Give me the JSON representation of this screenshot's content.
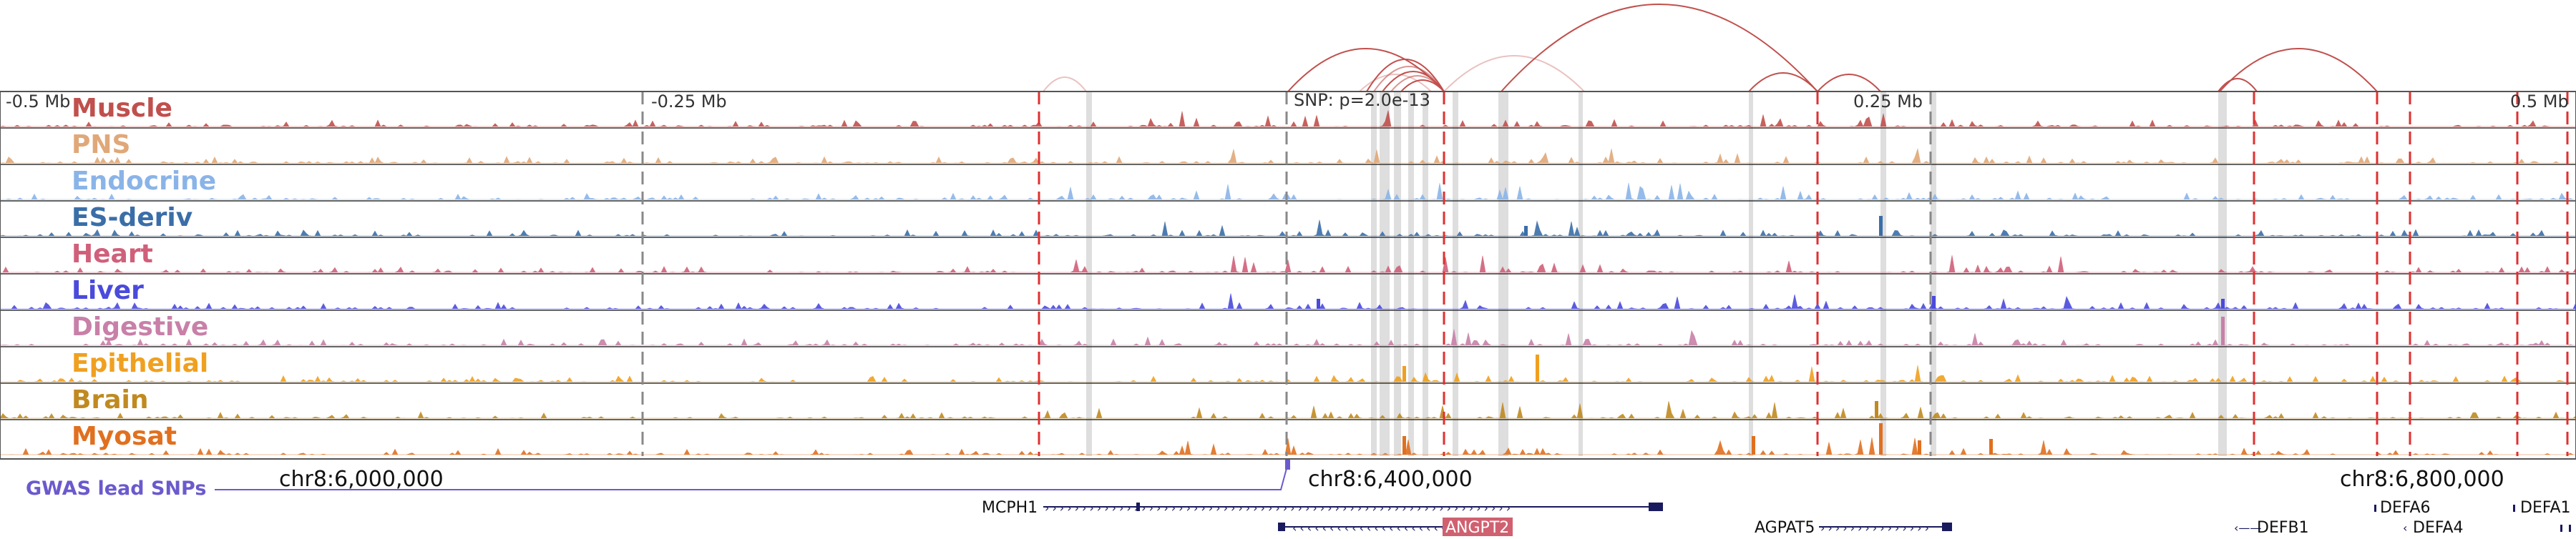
{
  "axis_ticks": [
    "-0.5 Mb",
    "-0.25 Mb",
    "0.25 Mb",
    "0.5 Mb"
  ],
  "snp_label": "SNP: p=2.0e-13",
  "gwas_label": "GWAS lead SNPs",
  "chrom_positions": [
    "chr8:6,000,000",
    "chr8:6,400,000",
    "chr8:6,800,000"
  ],
  "tracks": [
    {
      "name": "Muscle",
      "color": "#c0504d"
    },
    {
      "name": "PNS",
      "color": "#e0a878"
    },
    {
      "name": "Endocrine",
      "color": "#8ab4e8"
    },
    {
      "name": "ES-deriv",
      "color": "#3a6ea8"
    },
    {
      "name": "Heart",
      "color": "#d0607a"
    },
    {
      "name": "Liver",
      "color": "#4a4adc"
    },
    {
      "name": "Digestive",
      "color": "#c880a8"
    },
    {
      "name": "Epithelial",
      "color": "#f0a020"
    },
    {
      "name": "Brain",
      "color": "#c08a20"
    },
    {
      "name": "Myosat",
      "color": "#e07020"
    }
  ],
  "genes": [
    {
      "name": "MCPH1",
      "highlighted": false
    },
    {
      "name": "ANGPT2",
      "highlighted": true
    },
    {
      "name": "AGPAT5",
      "highlighted": false
    },
    {
      "name": "DEFB1",
      "highlighted": false
    },
    {
      "name": "DEFA6",
      "highlighted": false
    },
    {
      "name": "DEFA4",
      "highlighted": false
    },
    {
      "name": "DEFA1",
      "highlighted": false
    }
  ],
  "colors": {
    "boundary_red": "#e03030",
    "boundary_gray": "#888888",
    "loop_arc": "#c0504d",
    "highlight_band": "#cccccc",
    "gwas": "#6a5acd",
    "gene_body": "#1a1a5e",
    "gene_highlight": "#d06070"
  }
}
